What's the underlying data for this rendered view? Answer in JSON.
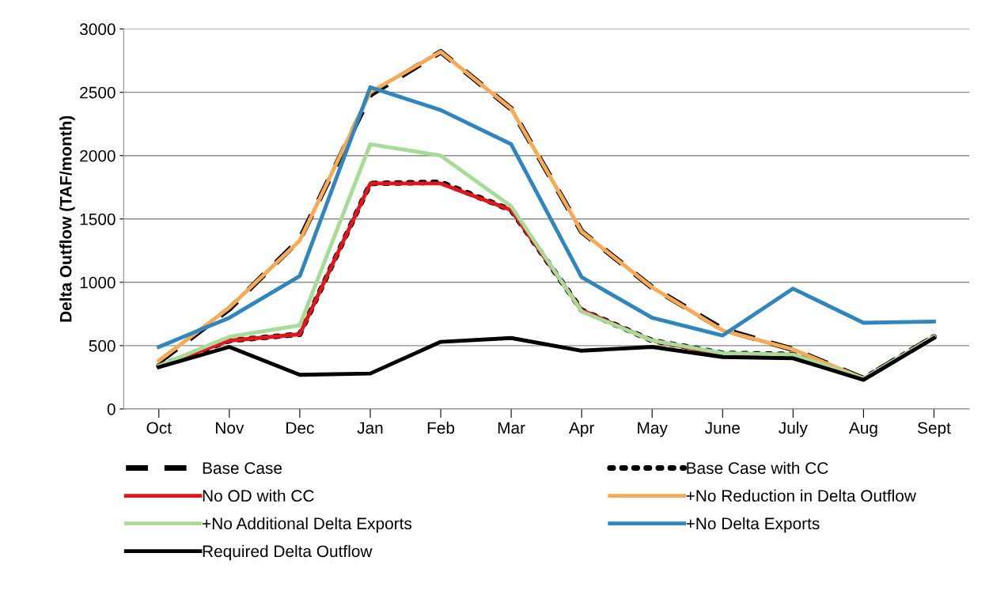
{
  "chart_data": {
    "type": "line",
    "ylabel": "Delta Outflow (TAF/month)",
    "categories": [
      "Oct",
      "Nov",
      "Dec",
      "Jan",
      "Feb",
      "Mar",
      "Apr",
      "May",
      "June",
      "July",
      "Aug",
      "Sept"
    ],
    "ylim": [
      0,
      3000
    ],
    "yticks": [
      0,
      500,
      1000,
      1500,
      2000,
      2500,
      3000
    ],
    "grid": "y",
    "legend": "bottom",
    "marker": "none",
    "series": [
      {
        "name": "Base Case",
        "color": "#000000",
        "line_style": "dashed",
        "values": [
          370,
          790,
          1340,
          2480,
          2820,
          2370,
          1400,
          960,
          630,
          470,
          240,
          570
        ]
      },
      {
        "name": "Base Case with CC",
        "color": "#000000",
        "line_style": "dotted",
        "values": [
          340,
          540,
          590,
          1780,
          1790,
          1570,
          780,
          540,
          440,
          430,
          240,
          570
        ]
      },
      {
        "name": "No OD with CC",
        "color": "#e3151b",
        "line_style": "solid",
        "values": [
          340,
          540,
          590,
          1780,
          1780,
          1570,
          780,
          540,
          430,
          430,
          null,
          null
        ]
      },
      {
        "name": "+No Reduction in Delta Outflow",
        "color": "#f8a954",
        "line_style": "solid",
        "values": [
          380,
          800,
          1330,
          2500,
          2820,
          2370,
          1400,
          960,
          620,
          470,
          240,
          570
        ]
      },
      {
        "name": "+No Additional Delta Exports",
        "color": "#a6dc96",
        "line_style": "solid",
        "values": [
          340,
          570,
          660,
          2090,
          2000,
          1600,
          770,
          540,
          440,
          430,
          240,
          570
        ]
      },
      {
        "name": "+No Delta Exports",
        "color": "#2e86c1",
        "line_style": "solid",
        "values": [
          490,
          720,
          1050,
          2540,
          2360,
          2090,
          1040,
          720,
          580,
          950,
          680,
          690
        ]
      },
      {
        "name": "Required Delta Outflow",
        "color": "#000000",
        "line_style": "solid",
        "values": [
          330,
          490,
          270,
          280,
          530,
          560,
          460,
          490,
          410,
          400,
          230,
          560
        ]
      }
    ]
  }
}
